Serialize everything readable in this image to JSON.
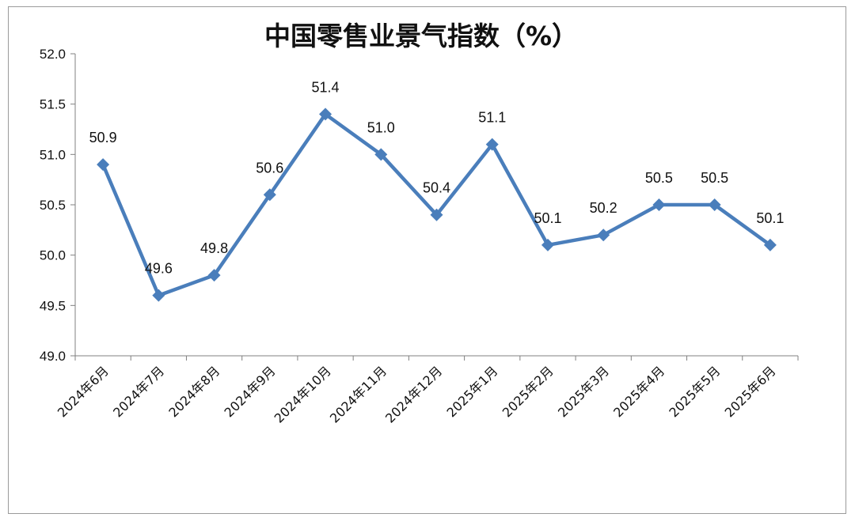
{
  "chart_data": {
    "type": "line",
    "title": "中国零售业景气指数（%）",
    "xlabel": "",
    "ylabel": "",
    "ylim": [
      49.0,
      52.0
    ],
    "yticks": [
      "49.0",
      "49.5",
      "50.0",
      "50.5",
      "51.0",
      "51.5",
      "52.0"
    ],
    "categories": [
      "2024年6月",
      "2024年7月",
      "2024年8月",
      "2024年9月",
      "2024年10月",
      "2024年11月",
      "2024年12月",
      "2025年1月",
      "2025年2月",
      "2025年3月",
      "2025年4月",
      "2025年5月",
      "2025年6月"
    ],
    "series": [
      {
        "values": [
          50.9,
          49.6,
          49.8,
          50.6,
          51.4,
          51.0,
          50.4,
          51.1,
          50.1,
          50.2,
          50.5,
          50.5,
          50.1
        ],
        "labels": [
          "50.9",
          "49.6",
          "49.8",
          "50.6",
          "51.4",
          "51.0",
          "50.4",
          "51.1",
          "50.1",
          "50.2",
          "50.5",
          "50.5",
          "50.1"
        ],
        "color": "#4a7ebb"
      }
    ],
    "grid": false,
    "legend": "none"
  }
}
